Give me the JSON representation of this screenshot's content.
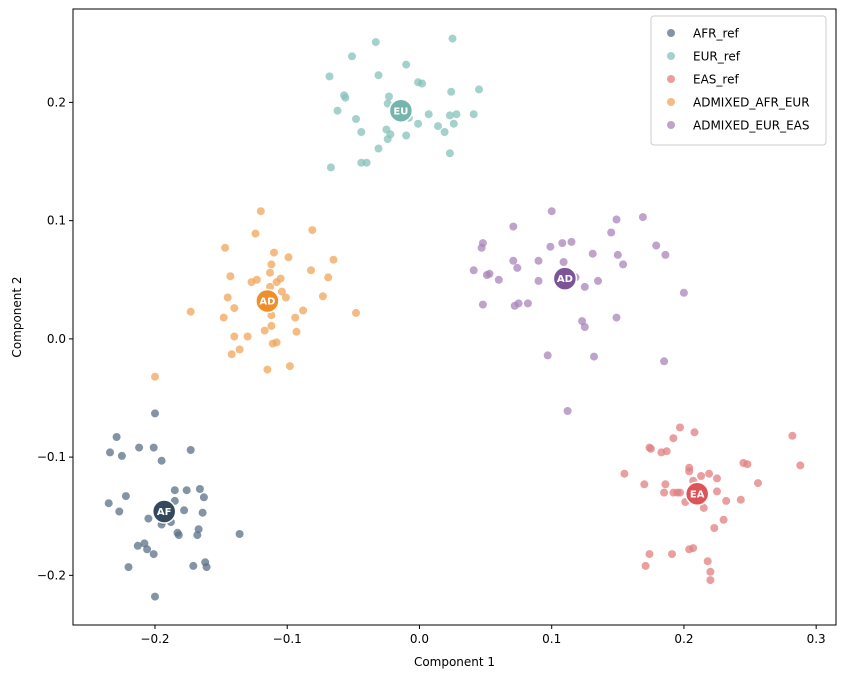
{
  "chart_data": {
    "type": "scatter",
    "title": "",
    "xlabel": "Component 1",
    "ylabel": "Component 2",
    "xlim": [
      -0.262,
      0.315
    ],
    "ylim": [
      -0.242,
      0.279
    ],
    "xticks": [
      -0.2,
      -0.1,
      0.0,
      0.1,
      0.2,
      0.3
    ],
    "xtick_labels": [
      "−0.2",
      "−0.1",
      "0.0",
      "0.1",
      "0.2",
      "0.3"
    ],
    "yticks": [
      -0.2,
      -0.1,
      0.0,
      0.1,
      0.2
    ],
    "ytick_labels": [
      "−0.2",
      "−0.1",
      "0.0",
      "0.1",
      "0.2"
    ],
    "grid": false,
    "legend_position": "top-right",
    "series": [
      {
        "name": "AFR_ref",
        "color": "#5b7086",
        "centroid": {
          "x": -0.193,
          "y": -0.146,
          "label": "AF",
          "color": "#34495e"
        },
        "points": [
          [
            -0.234,
            -0.096
          ],
          [
            -0.229,
            -0.083
          ],
          [
            -0.225,
            -0.099
          ],
          [
            -0.212,
            -0.092
          ],
          [
            -0.201,
            -0.092
          ],
          [
            -0.2,
            -0.063
          ],
          [
            -0.195,
            -0.103
          ],
          [
            -0.173,
            -0.094
          ],
          [
            -0.185,
            -0.128
          ],
          [
            -0.176,
            -0.128
          ],
          [
            -0.166,
            -0.127
          ],
          [
            -0.163,
            -0.134
          ],
          [
            -0.185,
            -0.137
          ],
          [
            -0.235,
            -0.139
          ],
          [
            -0.222,
            -0.133
          ],
          [
            -0.227,
            -0.146
          ],
          [
            -0.205,
            -0.152
          ],
          [
            -0.196,
            -0.147
          ],
          [
            -0.178,
            -0.145
          ],
          [
            -0.164,
            -0.147
          ],
          [
            -0.195,
            -0.157
          ],
          [
            -0.188,
            -0.155
          ],
          [
            -0.182,
            -0.166
          ],
          [
            -0.183,
            -0.164
          ],
          [
            -0.167,
            -0.161
          ],
          [
            -0.168,
            -0.166
          ],
          [
            -0.136,
            -0.165
          ],
          [
            -0.208,
            -0.173
          ],
          [
            -0.213,
            -0.175
          ],
          [
            -0.206,
            -0.178
          ],
          [
            -0.201,
            -0.182
          ],
          [
            -0.22,
            -0.193
          ],
          [
            -0.171,
            -0.192
          ],
          [
            -0.162,
            -0.189
          ],
          [
            -0.161,
            -0.193
          ],
          [
            -0.2,
            -0.218
          ],
          [
            -0.194,
            -0.154
          ]
        ]
      },
      {
        "name": "EUR_ref",
        "color": "#86c2bb",
        "centroid": {
          "x": -0.014,
          "y": 0.193,
          "label": "EU",
          "color": "#76b5ae"
        },
        "points": [
          [
            -0.033,
            0.251
          ],
          [
            0.025,
            0.254
          ],
          [
            -0.051,
            0.239
          ],
          [
            -0.068,
            0.222
          ],
          [
            -0.031,
            0.223
          ],
          [
            -0.01,
            0.232
          ],
          [
            -0.056,
            0.204
          ],
          [
            -0.057,
            0.206
          ],
          [
            -0.001,
            0.217
          ],
          [
            0.002,
            0.216
          ],
          [
            0.024,
            0.209
          ],
          [
            0.045,
            0.211
          ],
          [
            -0.023,
            0.205
          ],
          [
            -0.024,
            0.199
          ],
          [
            -0.062,
            0.193
          ],
          [
            -0.048,
            0.186
          ],
          [
            0.007,
            0.19
          ],
          [
            0.023,
            0.189
          ],
          [
            0.028,
            0.19
          ],
          [
            -0.025,
            0.177
          ],
          [
            -0.044,
            0.175
          ],
          [
            -0.022,
            0.173
          ],
          [
            -0.001,
            0.182
          ],
          [
            0.014,
            0.18
          ],
          [
            0.026,
            0.182
          ],
          [
            0.041,
            0.19
          ],
          [
            -0.01,
            0.172
          ],
          [
            -0.024,
            0.169
          ],
          [
            -0.008,
            0.187
          ],
          [
            -0.031,
            0.161
          ],
          [
            0.023,
            0.157
          ],
          [
            -0.044,
            0.149
          ],
          [
            -0.04,
            0.149
          ],
          [
            -0.067,
            0.145
          ],
          [
            0.019,
            0.175
          ]
        ]
      },
      {
        "name": "EAS_ref",
        "color": "#e17f80",
        "centroid": {
          "x": 0.21,
          "y": -0.131,
          "label": "EA",
          "color": "#dd5458"
        },
        "points": [
          [
            0.197,
            -0.075
          ],
          [
            0.208,
            -0.079
          ],
          [
            0.192,
            -0.084
          ],
          [
            0.174,
            -0.092
          ],
          [
            0.175,
            -0.093
          ],
          [
            0.183,
            -0.096
          ],
          [
            0.187,
            -0.095
          ],
          [
            0.282,
            -0.082
          ],
          [
            0.288,
            -0.107
          ],
          [
            0.245,
            -0.105
          ],
          [
            0.248,
            -0.106
          ],
          [
            0.204,
            -0.109
          ],
          [
            0.204,
            -0.112
          ],
          [
            0.207,
            -0.12
          ],
          [
            0.213,
            -0.116
          ],
          [
            0.219,
            -0.114
          ],
          [
            0.225,
            -0.118
          ],
          [
            0.155,
            -0.114
          ],
          [
            0.17,
            -0.123
          ],
          [
            0.186,
            -0.123
          ],
          [
            0.192,
            -0.13
          ],
          [
            0.197,
            -0.13
          ],
          [
            0.185,
            -0.13
          ],
          [
            0.225,
            -0.129
          ],
          [
            0.256,
            -0.122
          ],
          [
            0.232,
            -0.137
          ],
          [
            0.243,
            -0.136
          ],
          [
            0.201,
            -0.138
          ],
          [
            0.215,
            -0.143
          ],
          [
            0.223,
            -0.16
          ],
          [
            0.23,
            -0.153
          ],
          [
            0.174,
            -0.182
          ],
          [
            0.191,
            -0.182
          ],
          [
            0.204,
            -0.178
          ],
          [
            0.207,
            -0.177
          ],
          [
            0.218,
            -0.188
          ],
          [
            0.171,
            -0.192
          ],
          [
            0.22,
            -0.197
          ],
          [
            0.22,
            -0.204
          ],
          [
            0.195,
            -0.13
          ]
        ]
      },
      {
        "name": "ADMIXED_AFR_EUR",
        "color": "#f0a55a",
        "centroid": {
          "x": -0.115,
          "y": 0.032,
          "label": "AD",
          "color": "#ee8f2b"
        },
        "points": [
          [
            -0.2,
            -0.032
          ],
          [
            -0.12,
            0.108
          ],
          [
            -0.081,
            0.092
          ],
          [
            -0.147,
            0.077
          ],
          [
            -0.124,
            0.089
          ],
          [
            -0.11,
            0.073
          ],
          [
            -0.099,
            0.069
          ],
          [
            -0.112,
            0.063
          ],
          [
            -0.065,
            0.067
          ],
          [
            -0.069,
            0.052
          ],
          [
            -0.082,
            0.058
          ],
          [
            -0.113,
            0.056
          ],
          [
            -0.105,
            0.051
          ],
          [
            -0.123,
            0.05
          ],
          [
            -0.108,
            0.048
          ],
          [
            -0.143,
            0.053
          ],
          [
            -0.127,
            0.048
          ],
          [
            -0.113,
            0.044
          ],
          [
            -0.104,
            0.04
          ],
          [
            -0.145,
            0.035
          ],
          [
            -0.101,
            0.035
          ],
          [
            -0.073,
            0.036
          ],
          [
            -0.173,
            0.023
          ],
          [
            -0.148,
            0.018
          ],
          [
            -0.14,
            0.026
          ],
          [
            -0.088,
            0.024
          ],
          [
            -0.048,
            0.022
          ],
          [
            -0.112,
            0.02
          ],
          [
            -0.093,
            0.006
          ],
          [
            -0.112,
            0.011
          ],
          [
            -0.117,
            0.007
          ],
          [
            -0.13,
            0.002
          ],
          [
            -0.14,
            0.002
          ],
          [
            -0.111,
            -0.004
          ],
          [
            -0.108,
            -0.003
          ],
          [
            -0.136,
            -0.009
          ],
          [
            -0.142,
            -0.013
          ],
          [
            -0.098,
            -0.023
          ],
          [
            -0.115,
            -0.026
          ],
          [
            -0.094,
            0.018
          ]
        ]
      },
      {
        "name": "ADMIXED_EUR_EAS",
        "color": "#a884b8",
        "centroid": {
          "x": 0.11,
          "y": 0.051,
          "label": "AD",
          "color": "#7b5598"
        },
        "points": [
          [
            0.1,
            0.108
          ],
          [
            0.149,
            0.101
          ],
          [
            0.169,
            0.103
          ],
          [
            0.071,
            0.095
          ],
          [
            0.145,
            0.09
          ],
          [
            0.115,
            0.082
          ],
          [
            0.048,
            0.081
          ],
          [
            0.047,
            0.077
          ],
          [
            0.099,
            0.078
          ],
          [
            0.108,
            0.081
          ],
          [
            0.179,
            0.079
          ],
          [
            0.186,
            0.071
          ],
          [
            0.131,
            0.072
          ],
          [
            0.15,
            0.071
          ],
          [
            0.154,
            0.063
          ],
          [
            0.071,
            0.066
          ],
          [
            0.09,
            0.066
          ],
          [
            0.041,
            0.058
          ],
          [
            0.053,
            0.055
          ],
          [
            0.051,
            0.054
          ],
          [
            0.074,
            0.06
          ],
          [
            0.109,
            0.065
          ],
          [
            0.135,
            0.049
          ],
          [
            0.125,
            0.044
          ],
          [
            0.09,
            0.049
          ],
          [
            0.2,
            0.039
          ],
          [
            0.082,
            0.03
          ],
          [
            0.075,
            0.03
          ],
          [
            0.072,
            0.028
          ],
          [
            0.048,
            0.029
          ],
          [
            0.123,
            0.015
          ],
          [
            0.149,
            0.018
          ],
          [
            0.125,
            0.01
          ],
          [
            0.097,
            -0.014
          ],
          [
            0.132,
            -0.015
          ],
          [
            0.185,
            -0.019
          ],
          [
            0.112,
            -0.061
          ],
          [
            0.118,
            0.052
          ],
          [
            0.06,
            0.05
          ]
        ]
      }
    ]
  }
}
